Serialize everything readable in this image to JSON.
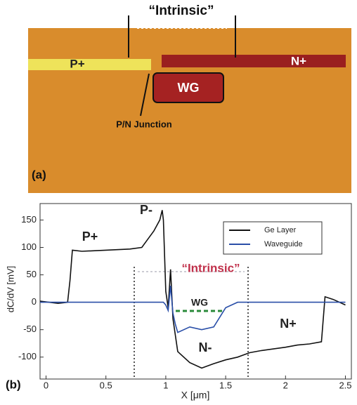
{
  "photo": {
    "intrinsic": "“Intrinsic”",
    "p_plus": "P+",
    "n_plus": "N+",
    "wg": "WG",
    "junction": "P/N Junction",
    "panel": "(a)"
  },
  "chart_data": {
    "type": "line",
    "panel": "(b)",
    "x_label": "X [μm]",
    "y_label": "dC/dV [mV]",
    "x": [
      -0.05,
      0.1,
      0.18,
      0.2,
      0.22,
      0.3,
      0.5,
      0.7,
      0.8,
      0.85,
      0.9,
      0.95,
      0.97,
      0.98,
      1.0,
      1.02,
      1.04,
      1.06,
      1.08,
      1.1,
      1.2,
      1.3,
      1.4,
      1.5,
      1.6,
      1.7,
      1.8,
      2.0,
      2.1,
      2.2,
      2.3,
      2.33,
      2.4,
      2.5
    ],
    "series": [
      {
        "name": "Ge Layer",
        "color": "#111111",
        "values": [
          2,
          -2,
          0,
          40,
          95,
          93,
          95,
          97,
          100,
          115,
          130,
          150,
          168,
          150,
          20,
          -10,
          60,
          -30,
          -60,
          -90,
          -110,
          -120,
          -112,
          -105,
          -100,
          -92,
          -88,
          -82,
          -78,
          -76,
          -72,
          10,
          5,
          -5
        ]
      },
      {
        "name": "Waveguide",
        "color": "#2a4fa8",
        "values": [
          0,
          0,
          0,
          0,
          0,
          0,
          0,
          0,
          0,
          0,
          0,
          0,
          0,
          0,
          -5,
          -15,
          30,
          -20,
          -40,
          -55,
          -45,
          -50,
          -45,
          -10,
          0,
          0,
          0,
          0,
          0,
          0,
          0,
          0,
          0,
          0
        ]
      }
    ],
    "xlim": [
      -0.05,
      2.55
    ],
    "ylim": [
      -140,
      180
    ],
    "xticks": [
      0,
      0.5,
      1,
      1.5,
      2,
      2.5
    ],
    "yticks": [
      -100,
      -50,
      0,
      50,
      100,
      150
    ],
    "annotations": {
      "p_plus": "P+",
      "p_minus": "P-",
      "intrinsic": "“Intrinsic”",
      "wg": "WG",
      "n_minus": "N-",
      "n_plus": "N+"
    }
  }
}
